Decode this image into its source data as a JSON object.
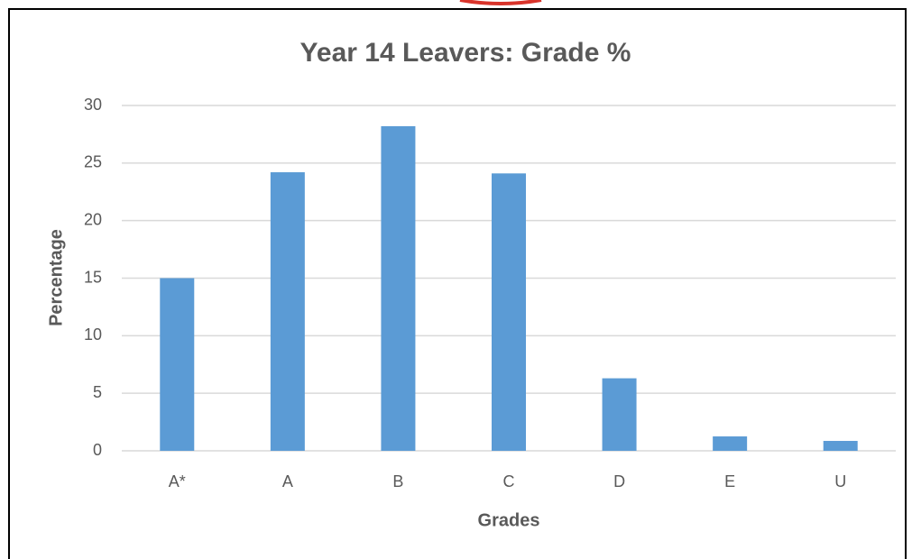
{
  "chart_data": {
    "type": "bar",
    "title": "Year 14 Leavers:  Grade %",
    "x_label": "Grades",
    "y_label": "Percentage",
    "categories": [
      "A*",
      "A",
      "B",
      "C",
      "D",
      "E",
      "U"
    ],
    "values": [
      15,
      24.2,
      28.2,
      24.1,
      6.3,
      1.25,
      0.86
    ],
    "color": "#5b9bd5",
    "ylim": [
      0,
      30
    ],
    "yticks": [
      0,
      5,
      10,
      15,
      20,
      25,
      30
    ],
    "grid": true
  }
}
